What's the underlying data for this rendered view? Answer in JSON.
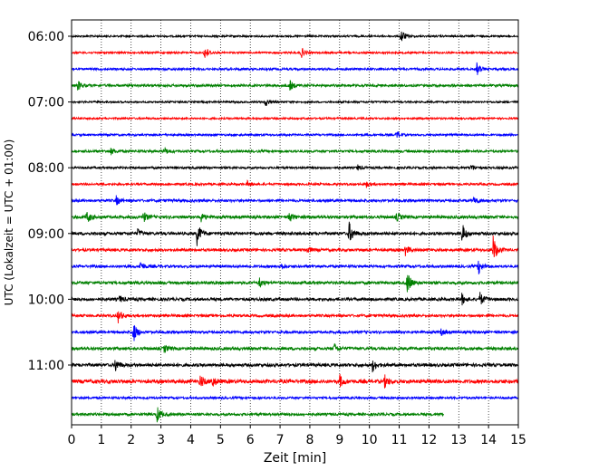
{
  "chart_data": {
    "type": "line",
    "title": "",
    "xlabel": "Zeit  [min]",
    "ylabel": "UTC (Lokalzeit = UTC + 01:00)",
    "xlim": [
      0,
      15
    ],
    "x_ticks": [
      0,
      1,
      2,
      3,
      4,
      5,
      6,
      7,
      8,
      9,
      10,
      11,
      12,
      13,
      14,
      15
    ],
    "x_tick_labels": [
      "0",
      "1",
      "2",
      "3",
      "4",
      "5",
      "6",
      "7",
      "8",
      "9",
      "10",
      "11",
      "12",
      "13",
      "14",
      "15"
    ],
    "y_tick_labels": [
      {
        "label": "06:00",
        "trace": 0
      },
      {
        "label": "07:00",
        "trace": 4
      },
      {
        "label": "08:00",
        "trace": 8
      },
      {
        "label": "09:00",
        "trace": 12
      },
      {
        "label": "10:00",
        "trace": 16
      },
      {
        "label": "11:00",
        "trace": 20
      }
    ],
    "grid": "vertical dotted",
    "color_cycle": [
      "#000000",
      "#ff0000",
      "#0000ff",
      "#008000"
    ],
    "traces": [
      {
        "start": "06:00",
        "end_min": 15,
        "color": "#000000",
        "noise": 1.0,
        "events": [
          [
            11.05,
            9
          ]
        ]
      },
      {
        "start": "06:15",
        "end_min": 15,
        "color": "#ff0000",
        "noise": 1.0,
        "events": [
          [
            4.45,
            9
          ],
          [
            7.7,
            6
          ]
        ]
      },
      {
        "start": "06:30",
        "end_min": 15,
        "color": "#0000ff",
        "noise": 1.2,
        "events": [
          [
            13.6,
            7
          ]
        ]
      },
      {
        "start": "06:45",
        "end_min": 15,
        "color": "#008000",
        "noise": 1.3,
        "events": [
          [
            0.2,
            6
          ],
          [
            7.3,
            7
          ]
        ]
      },
      {
        "start": "07:00",
        "end_min": 15,
        "color": "#000000",
        "noise": 1.0,
        "events": [
          [
            6.5,
            5
          ]
        ]
      },
      {
        "start": "07:15",
        "end_min": 15,
        "color": "#ff0000",
        "noise": 1.0,
        "events": []
      },
      {
        "start": "07:30",
        "end_min": 15,
        "color": "#0000ff",
        "noise": 1.1,
        "events": [
          [
            10.9,
            5
          ]
        ]
      },
      {
        "start": "07:45",
        "end_min": 15,
        "color": "#008000",
        "noise": 1.3,
        "events": [
          [
            1.3,
            4
          ],
          [
            3.1,
            4
          ]
        ]
      },
      {
        "start": "08:00",
        "end_min": 15,
        "color": "#000000",
        "noise": 1.2,
        "events": [
          [
            9.6,
            3
          ],
          [
            13.4,
            4
          ]
        ]
      },
      {
        "start": "08:15",
        "end_min": 15,
        "color": "#ff0000",
        "noise": 1.2,
        "events": [
          [
            5.9,
            3
          ],
          [
            9.9,
            3
          ]
        ]
      },
      {
        "start": "08:30",
        "end_min": 15,
        "color": "#0000ff",
        "noise": 1.4,
        "events": [
          [
            1.5,
            5
          ],
          [
            13.5,
            5
          ]
        ]
      },
      {
        "start": "08:45",
        "end_min": 15,
        "color": "#008000",
        "noise": 1.6,
        "events": [
          [
            0.5,
            7
          ],
          [
            2.4,
            6
          ],
          [
            4.3,
            7
          ],
          [
            7.3,
            6
          ],
          [
            10.9,
            5
          ]
        ]
      },
      {
        "start": "09:00",
        "end_min": 15,
        "color": "#000000",
        "noise": 1.6,
        "events": [
          [
            4.2,
            14
          ],
          [
            9.3,
            14
          ],
          [
            13.1,
            12
          ],
          [
            2.2,
            5
          ]
        ]
      },
      {
        "start": "09:15",
        "end_min": 15,
        "color": "#ff0000",
        "noise": 1.5,
        "events": [
          [
            14.15,
            16
          ],
          [
            11.2,
            6
          ],
          [
            7.9,
            4
          ]
        ]
      },
      {
        "start": "09:30",
        "end_min": 15,
        "color": "#0000ff",
        "noise": 1.4,
        "events": [
          [
            13.65,
            9
          ],
          [
            2.3,
            6
          ],
          [
            7.0,
            4
          ]
        ]
      },
      {
        "start": "09:45",
        "end_min": 15,
        "color": "#008000",
        "noise": 1.6,
        "events": [
          [
            11.25,
            14
          ],
          [
            6.3,
            5
          ]
        ]
      },
      {
        "start": "10:00",
        "end_min": 15,
        "color": "#000000",
        "noise": 1.6,
        "events": [
          [
            13.1,
            6
          ],
          [
            13.7,
            8
          ],
          [
            1.6,
            4
          ]
        ]
      },
      {
        "start": "10:15",
        "end_min": 15,
        "color": "#ff0000",
        "noise": 1.4,
        "events": [
          [
            1.55,
            8
          ]
        ]
      },
      {
        "start": "10:30",
        "end_min": 15,
        "color": "#0000ff",
        "noise": 1.4,
        "events": [
          [
            2.05,
            14
          ],
          [
            12.4,
            4
          ]
        ]
      },
      {
        "start": "10:45",
        "end_min": 15,
        "color": "#008000",
        "noise": 1.6,
        "events": [
          [
            8.8,
            6
          ],
          [
            3.1,
            4
          ]
        ]
      },
      {
        "start": "11:00",
        "end_min": 15,
        "color": "#000000",
        "noise": 1.7,
        "events": [
          [
            1.45,
            8
          ],
          [
            10.1,
            7
          ]
        ]
      },
      {
        "start": "11:15",
        "end_min": 15,
        "color": "#ff0000",
        "noise": 2.0,
        "events": [
          [
            4.3,
            8
          ],
          [
            4.7,
            7
          ],
          [
            9.0,
            7
          ],
          [
            10.5,
            7
          ]
        ]
      },
      {
        "start": "11:30",
        "end_min": 15,
        "color": "#0000ff",
        "noise": 1.2,
        "events": []
      },
      {
        "start": "11:45",
        "end_min": 12.5,
        "color": "#008000",
        "noise": 1.4,
        "events": [
          [
            2.85,
            10
          ]
        ]
      }
    ]
  }
}
